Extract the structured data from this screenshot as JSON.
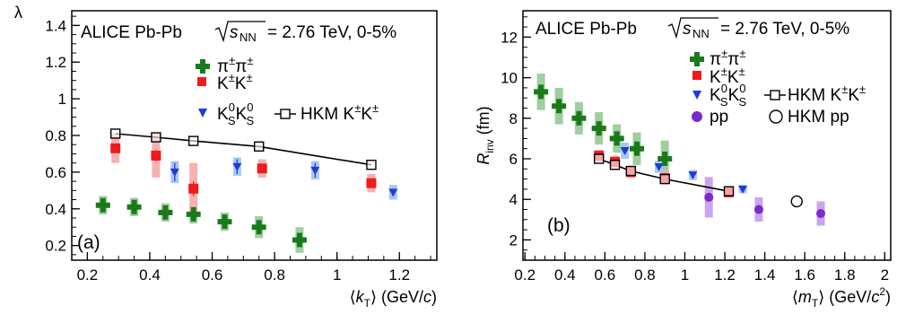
{
  "chart_data": [
    {
      "type": "scatter",
      "panel_label": "(a)",
      "header": {
        "experiment": "ALICE Pb-Pb",
        "energy": "= 2.76 TeV, 0-5%"
      },
      "xlabel": {
        "pre": "⟨",
        "var": "k",
        "sub": "T",
        "post": "⟩ (GeV/",
        "unit": "c",
        "end": ")"
      },
      "ylabel": "λ",
      "xlim": [
        0.15,
        1.32
      ],
      "ylim": [
        0.12,
        1.48
      ],
      "xticks": [
        "0.2",
        "0.4",
        "0.6",
        "0.8",
        "1",
        "1.2"
      ],
      "yticks": [
        "0.2",
        "0.4",
        "0.6",
        "0.8",
        "1",
        "1.2",
        "1.4"
      ],
      "series": [
        {
          "name": "π±π±",
          "marker": "cross",
          "color": "#1a7a1a",
          "sys_color": "#9fcf9f",
          "x": [
            0.25,
            0.35,
            0.45,
            0.54,
            0.64,
            0.75,
            0.88
          ],
          "y": [
            0.42,
            0.41,
            0.38,
            0.37,
            0.33,
            0.3,
            0.23
          ],
          "stat": [
            0.02,
            0.02,
            0.02,
            0.02,
            0.02,
            0.02,
            0.02
          ],
          "sys": [
            0.05,
            0.05,
            0.05,
            0.05,
            0.05,
            0.06,
            0.07
          ]
        },
        {
          "name": "K±K±",
          "marker": "square",
          "color": "#ee1c1c",
          "sys_color": "#f6b2b2",
          "x": [
            0.29,
            0.42,
            0.54,
            0.76,
            1.11
          ],
          "y": [
            0.73,
            0.69,
            0.51,
            0.62,
            0.54
          ],
          "stat": [
            0.02,
            0.03,
            0.04,
            0.02,
            0.02
          ],
          "sys": [
            0.08,
            0.12,
            0.14,
            0.05,
            0.05
          ]
        },
        {
          "name": "K0SK0S",
          "marker": "triangle-down",
          "color": "#1f3bd6",
          "sys_color": "#a8c8f0",
          "x": [
            0.48,
            0.68,
            0.93,
            1.18
          ],
          "y": [
            0.6,
            0.63,
            0.61,
            0.49
          ],
          "stat": [
            0.05,
            0.04,
            0.04,
            0.02
          ],
          "sys": [
            0.06,
            0.05,
            0.05,
            0.04
          ]
        },
        {
          "name": "HKM K±K±",
          "marker": "open-square",
          "color": "#000000",
          "x": [
            0.29,
            0.42,
            0.54,
            0.75,
            1.11
          ],
          "y": [
            0.81,
            0.79,
            0.77,
            0.74,
            0.64
          ],
          "line": true
        }
      ],
      "legend": {
        "pi": {
          "main": "π",
          "sup1": "±",
          "main2": "π",
          "sup2": "±"
        },
        "kch": {
          "main": "K",
          "sup1": "±",
          "main2": "K",
          "sup2": "±"
        },
        "k0": {
          "main": "K",
          "sup1": "0",
          "sub1": "S",
          "main2": "K",
          "sup2": "0",
          "sub2": "S"
        },
        "hkm": {
          "main": "HKM K",
          "sup1": "±",
          "main2": "K",
          "sup2": "±"
        }
      }
    },
    {
      "type": "scatter",
      "panel_label": "(b)",
      "header": {
        "experiment": "ALICE Pb-Pb",
        "energy": "= 2.76 TeV, 0-5%"
      },
      "xlabel": {
        "pre": "⟨",
        "var": "m",
        "sub": "T",
        "post": "⟩ (GeV/",
        "unit": "c",
        "sup": "2",
        "end": ")"
      },
      "ylabel": {
        "var": "R",
        "sub": "inv",
        "post": " (fm)"
      },
      "xlim": [
        0.19,
        2.03
      ],
      "ylim": [
        1.0,
        13.3
      ],
      "xticks": [
        "0.2",
        "0.4",
        "0.6",
        "0.8",
        "1",
        "1.2",
        "1.4",
        "1.6",
        "1.8",
        "2"
      ],
      "yticks": [
        "2",
        "4",
        "6",
        "8",
        "10",
        "12"
      ],
      "series": [
        {
          "name": "π±π±",
          "marker": "cross",
          "color": "#1a7a1a",
          "sys_color": "#9fcf9f",
          "x": [
            0.28,
            0.37,
            0.47,
            0.57,
            0.66,
            0.76,
            0.9
          ],
          "y": [
            9.3,
            8.6,
            8.0,
            7.5,
            7.0,
            6.5,
            6.0
          ],
          "stat": [
            0.2,
            0.2,
            0.2,
            0.2,
            0.2,
            0.2,
            0.2
          ],
          "sys": [
            0.9,
            0.9,
            0.8,
            0.8,
            0.7,
            0.8,
            0.9
          ]
        },
        {
          "name": "K±K±",
          "marker": "square",
          "color": "#ee1c1c",
          "sys_color": "#f6b2b2",
          "x": [
            0.57,
            0.65,
            0.73,
            0.9,
            1.22
          ],
          "y": [
            6.15,
            5.85,
            5.35,
            5.05,
            4.35
          ],
          "stat": [
            0.1,
            0.1,
            0.1,
            0.1,
            0.1
          ],
          "sys": [
            0.3,
            0.3,
            0.3,
            0.3,
            0.25
          ]
        },
        {
          "name": "K0SK0S",
          "marker": "triangle-down",
          "color": "#1f3bd6",
          "sys_color": "#a8c8f0",
          "x": [
            0.7,
            0.87,
            1.04,
            1.29
          ],
          "y": [
            6.4,
            5.6,
            5.2,
            4.5
          ],
          "stat": [
            0.15,
            0.1,
            0.1,
            0.1
          ],
          "sys": [
            0.4,
            0.3,
            0.25,
            0.2
          ]
        },
        {
          "name": "pp",
          "marker": "circle",
          "color": "#7a2bc9",
          "sys_color": "#c9a6ee",
          "x": [
            1.12,
            1.37,
            1.68
          ],
          "y": [
            4.1,
            3.5,
            3.3
          ],
          "stat": [
            0.15,
            0.15,
            0.15
          ],
          "sys": [
            1.0,
            0.6,
            0.6
          ]
        },
        {
          "name": "HKM K±K±",
          "marker": "open-square",
          "color": "#000000",
          "x": [
            0.57,
            0.65,
            0.73,
            0.9,
            1.22
          ],
          "y": [
            6.0,
            5.7,
            5.4,
            5.0,
            4.4
          ],
          "line": true
        },
        {
          "name": "HKM pp",
          "marker": "open-circle",
          "color": "#000000",
          "x": [
            1.56
          ],
          "y": [
            3.9
          ]
        }
      ],
      "legend": {
        "pi": {
          "main": "π",
          "sup1": "±",
          "main2": "π",
          "sup2": "±"
        },
        "kch": {
          "main": "K",
          "sup1": "±",
          "main2": "K",
          "sup2": "±"
        },
        "k0": {
          "main": "K",
          "sup1": "0",
          "sub1": "S",
          "main2": "K",
          "sup2": "0",
          "sub2": "S"
        },
        "hkm": {
          "main": "HKM K",
          "sup1": "±",
          "main2": "K",
          "sup2": "±"
        },
        "pp": "pp",
        "hkm_pp": "HKM pp"
      }
    }
  ]
}
